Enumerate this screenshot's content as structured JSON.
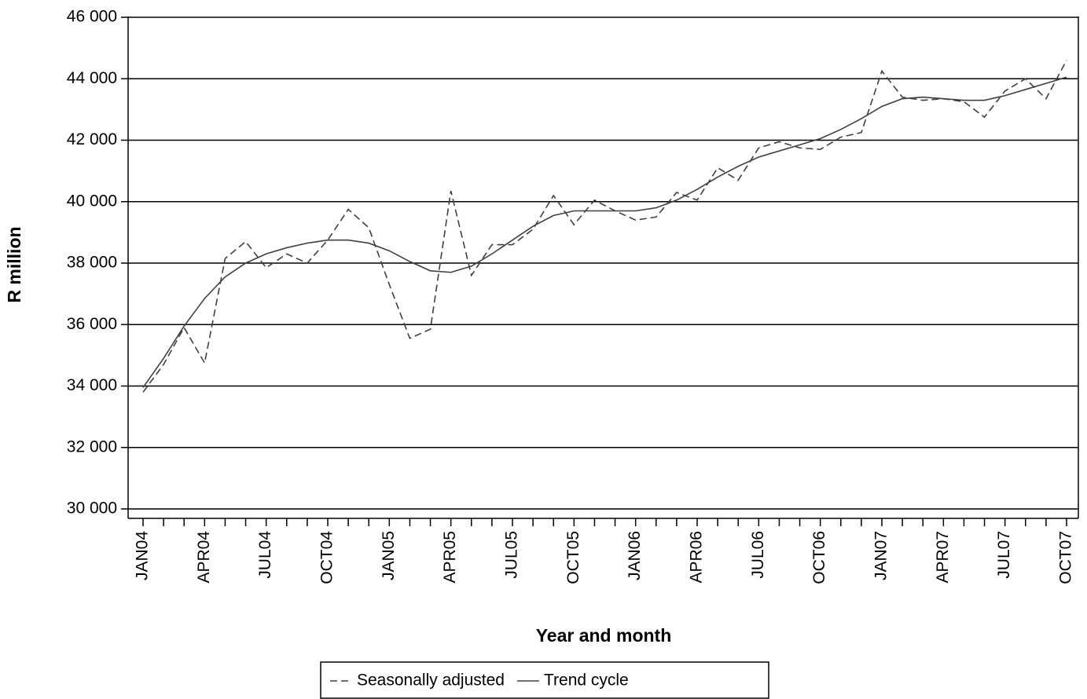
{
  "chart_data": {
    "type": "line",
    "x_label": "Year and month",
    "y_label": "R million",
    "categories": [
      "JAN04",
      null,
      null,
      "APR04",
      null,
      null,
      "JUL04",
      null,
      null,
      "OCT04",
      null,
      null,
      "JAN05",
      null,
      null,
      "APR05",
      null,
      null,
      "JUL05",
      null,
      null,
      "OCT05",
      null,
      null,
      "JAN06",
      null,
      null,
      "APR06",
      null,
      null,
      "JUL06",
      null,
      null,
      "OCT06",
      null,
      null,
      "JAN07",
      null,
      null,
      "APR07",
      null,
      null,
      "JUL07",
      null,
      null,
      "OCT07"
    ],
    "series": [
      {
        "name": "Seasonally adjusted",
        "color": "#404040",
        "line_style": "dashed",
        "values": [
          33800,
          34700,
          35900,
          34750,
          38150,
          38700,
          37850,
          38300,
          38000,
          38750,
          39750,
          39150,
          37300,
          35550,
          35850,
          40350,
          37600,
          38600,
          38600,
          39100,
          40200,
          39250,
          40050,
          39700,
          39400,
          39500,
          40300,
          40050,
          41100,
          40700,
          41750,
          41950,
          41750,
          41700,
          42100,
          42250,
          44250,
          43400,
          43300,
          43350,
          43250,
          42750,
          43600,
          44000,
          43350,
          44600
        ]
      },
      {
        "name": "Trend cycle",
        "color": "#404040",
        "line_style": "solid",
        "values": [
          33950,
          34900,
          35950,
          36850,
          37550,
          38000,
          38300,
          38500,
          38650,
          38750,
          38750,
          38650,
          38400,
          38050,
          37750,
          37700,
          37900,
          38300,
          38750,
          39200,
          39550,
          39700,
          39700,
          39700,
          39700,
          39800,
          40050,
          40400,
          40800,
          41150,
          41450,
          41650,
          41850,
          42050,
          42350,
          42700,
          43100,
          43350,
          43400,
          43350,
          43300,
          43300,
          43450,
          43650,
          43850,
          44050
        ]
      }
    ],
    "ylim": [
      30000,
      46000
    ],
    "yticks": [
      {
        "value": 30000,
        "label": "30 000"
      },
      {
        "value": 32000,
        "label": "32 000"
      },
      {
        "value": 34000,
        "label": "34 000"
      },
      {
        "value": 36000,
        "label": "36 000"
      },
      {
        "value": 38000,
        "label": "38 000"
      },
      {
        "value": 40000,
        "label": "40 000"
      },
      {
        "value": 42000,
        "label": "42 000"
      },
      {
        "value": 44000,
        "label": "44 000"
      },
      {
        "value": 46000,
        "label": "46 000"
      }
    ],
    "grid": true
  }
}
